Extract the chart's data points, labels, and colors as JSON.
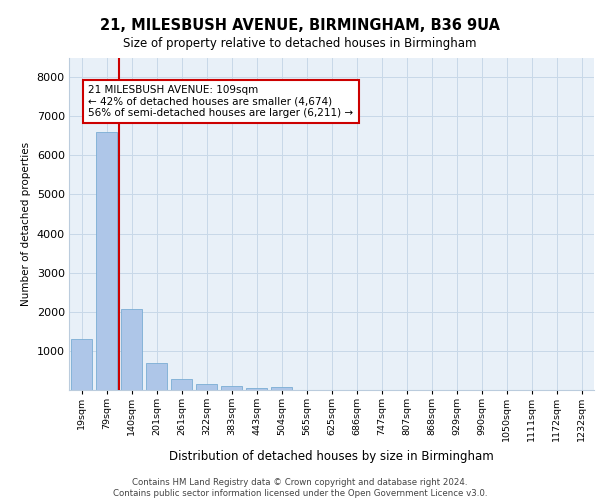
{
  "title1": "21, MILESBUSH AVENUE, BIRMINGHAM, B36 9UA",
  "title2": "Size of property relative to detached houses in Birmingham",
  "xlabel": "Distribution of detached houses by size in Birmingham",
  "ylabel": "Number of detached properties",
  "categories": [
    "19sqm",
    "79sqm",
    "140sqm",
    "201sqm",
    "261sqm",
    "322sqm",
    "383sqm",
    "443sqm",
    "504sqm",
    "565sqm",
    "625sqm",
    "686sqm",
    "747sqm",
    "807sqm",
    "868sqm",
    "929sqm",
    "990sqm",
    "1050sqm",
    "1111sqm",
    "1172sqm",
    "1232sqm"
  ],
  "values": [
    1300,
    6600,
    2080,
    690,
    280,
    150,
    100,
    60,
    70,
    0,
    0,
    0,
    0,
    0,
    0,
    0,
    0,
    0,
    0,
    0,
    0
  ],
  "bar_color": "#aec6e8",
  "bar_edge_color": "#7aadd4",
  "annotation_text": "21 MILESBUSH AVENUE: 109sqm\n← 42% of detached houses are smaller (4,674)\n56% of semi-detached houses are larger (6,211) →",
  "annotation_box_color": "#ffffff",
  "annotation_box_edge_color": "#cc0000",
  "vline_color": "#cc0000",
  "vline_x_index": 1.5,
  "grid_color": "#c8d8e8",
  "background_color": "#e8f0f8",
  "footer_text": "Contains HM Land Registry data © Crown copyright and database right 2024.\nContains public sector information licensed under the Open Government Licence v3.0.",
  "ylim": [
    0,
    8500
  ],
  "yticks": [
    0,
    1000,
    2000,
    3000,
    4000,
    5000,
    6000,
    7000,
    8000
  ]
}
